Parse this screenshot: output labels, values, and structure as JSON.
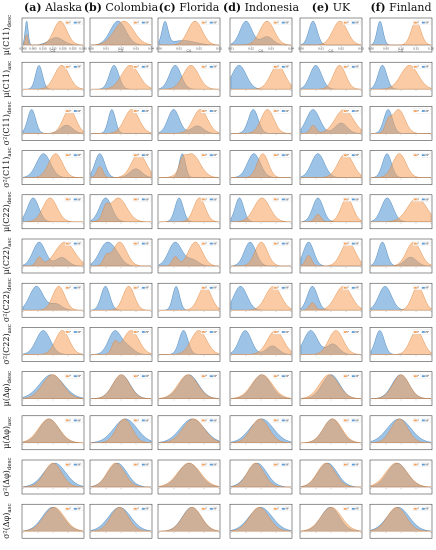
{
  "figure": {
    "columns": [
      {
        "letter": "(a)",
        "name": "Alaska"
      },
      {
        "letter": "(b)",
        "name": "Colombia"
      },
      {
        "letter": "(c)",
        "name": "Florida"
      },
      {
        "letter": "(d)",
        "name": "Indonesia"
      },
      {
        "letter": "(e)",
        "name": "UK"
      },
      {
        "letter": "(f)",
        "name": "Finland"
      }
    ],
    "rows": [
      {
        "base": "μ(C11)",
        "sub": "desc"
      },
      {
        "base": "μ(C11)",
        "sub": "asc"
      },
      {
        "base": "σ²(C11)",
        "sub": "desc"
      },
      {
        "base": "σ²(C11)",
        "sub": "asc"
      },
      {
        "base": "μ(C22)",
        "sub": "desc"
      },
      {
        "base": "μ(C22)",
        "sub": "asc"
      },
      {
        "base": "σ²(C22)",
        "sub": "desc"
      },
      {
        "base": "σ²(C22)",
        "sub": "asc"
      },
      {
        "base": "μ(Δφ)",
        "sub": "desc"
      },
      {
        "base": "μ(Δφ)",
        "sub": "asc"
      },
      {
        "base": "σ²(Δφ)",
        "sub": "desc"
      },
      {
        "base": "σ²(Δφ)",
        "sub": "asc"
      }
    ],
    "legend": {
      "flood": "F",
      "nonflood": "NF"
    },
    "colors": {
      "flood": "#f5a15a",
      "nonflood": "#5b9bd5",
      "overlap": "#7f8890"
    }
  },
  "chart_data": {
    "type": "area",
    "note_series": [
      "F",
      "NF"
    ],
    "panels": [
      {
        "col": 0,
        "row": 0,
        "xlabel": "C11",
        "ticks": [
          "0.000",
          "0.005",
          "0.010",
          "0.015",
          "0.020",
          "0.025",
          "0.030"
        ],
        "F": {
          "peaks": [
            [
              0.62,
              0.11,
              0.55
            ],
            [
              0.06,
              0.02,
              0.25
            ]
          ]
        },
        "NF": {
          "peaks": [
            [
              0.06,
              0.025,
              1.0
            ],
            [
              0.55,
              0.12,
              0.3
            ]
          ]
        }
      },
      {
        "col": 1,
        "row": 0,
        "xlabel": "C11",
        "ticks": [
          "0.00",
          "0.01",
          "0.02",
          "0.03",
          "0.04"
        ],
        "F": {
          "peaks": [
            [
              0.55,
              0.16,
              0.9
            ]
          ]
        },
        "NF": {
          "peaks": [
            [
              0.45,
              0.13,
              1.0
            ]
          ]
        }
      },
      {
        "col": 2,
        "row": 0,
        "xlabel": "C11",
        "ticks": [
          "0.00",
          "0.01",
          "0.02",
          "0.03"
        ],
        "F": {
          "peaks": [
            [
              0.6,
              0.12,
              0.85
            ]
          ]
        },
        "NF": {
          "peaks": [
            [
              0.1,
              0.05,
              1.0
            ],
            [
              0.4,
              0.2,
              0.2
            ]
          ]
        }
      },
      {
        "col": 3,
        "row": 0,
        "xlabel": "C11",
        "ticks": [
          "0.01",
          "0.02",
          "0.03",
          "0.04"
        ],
        "F": {
          "peaks": [
            [
              0.6,
              0.12,
              0.9
            ]
          ]
        },
        "NF": {
          "peaks": [
            [
              0.25,
              0.1,
              1.0
            ],
            [
              0.6,
              0.1,
              0.35
            ]
          ]
        }
      },
      {
        "col": 4,
        "row": 0,
        "xlabel": "C11",
        "ticks": [
          "0.00",
          "0.01",
          "0.02",
          "0.03"
        ],
        "F": {
          "peaks": [
            [
              0.65,
              0.12,
              0.6
            ]
          ]
        },
        "NF": {
          "peaks": [
            [
              0.2,
              0.07,
              1.0
            ]
          ]
        }
      },
      {
        "col": 5,
        "row": 0,
        "xlabel": "C11",
        "ticks": [
          "0.00",
          "0.05",
          "0.10",
          "0.15",
          "0.20"
        ],
        "F": {
          "peaks": [
            [
              0.75,
              0.08,
              0.55
            ]
          ]
        },
        "NF": {
          "peaks": [
            [
              0.15,
              0.05,
              1.0
            ]
          ]
        }
      }
    ]
  }
}
